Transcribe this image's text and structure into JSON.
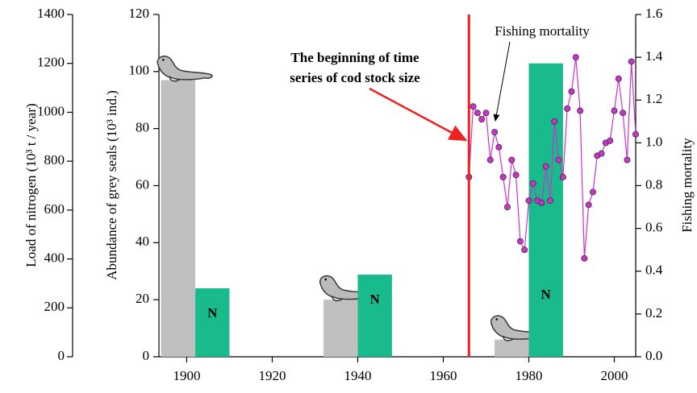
{
  "chart_data": {
    "type": "combo",
    "ylabel": "Load of nitrogen (10³ t / year)",
    "y2label": "Abundance of grey seals (10³ ind.)",
    "y3label": "Fishing mortality",
    "xlim": [
      1893.5,
      2005
    ],
    "xticks": [
      1900,
      1920,
      1940,
      1960,
      1980,
      2000
    ],
    "ylim": [
      0,
      1400
    ],
    "yticks": [
      0,
      200,
      400,
      600,
      800,
      1000,
      1200,
      1400
    ],
    "y2lim": [
      0,
      120
    ],
    "y2ticks": [
      0,
      20,
      40,
      60,
      80,
      100,
      120
    ],
    "y3lim": [
      0,
      1.6
    ],
    "y3ticks": [
      {
        "value": 0,
        "label": "0.0"
      },
      0.2,
      0.4,
      0.6,
      0.8,
      {
        "value": 1,
        "label": "1.0"
      },
      1.2,
      1.4,
      1.6
    ],
    "series": [
      {
        "type": "bar",
        "axis": "y2",
        "color": "#c0c0c0",
        "x_start": [
          1894,
          1932,
          1972
        ],
        "x_end": [
          1902,
          1940,
          1980
        ],
        "values": [
          97,
          20,
          6
        ]
      },
      {
        "type": "bar",
        "axis": "y",
        "color": "#19ba8c",
        "label": "N",
        "x_start": [
          1902,
          1940,
          1980
        ],
        "x_end": [
          1910,
          1948,
          1988
        ],
        "values": [
          280,
          336,
          1200
        ]
      },
      {
        "type": "line",
        "axis": "y3",
        "color": "#cc33cc",
        "x": [
          1966,
          1967,
          1968,
          1969,
          1970,
          1971,
          1972,
          1973,
          1974,
          1975,
          1976,
          1977,
          1978,
          1979,
          1980,
          1981,
          1982,
          1983,
          1984,
          1985,
          1986,
          1987,
          1988,
          1989,
          1990,
          1991,
          1992,
          1993,
          1994,
          1995,
          1996,
          1997,
          1998,
          1999,
          2000,
          2001,
          2002,
          2003,
          2004,
          2005
        ],
        "values": [
          0.84,
          1.17,
          1.14,
          1.11,
          1.14,
          0.92,
          1.05,
          0.98,
          0.84,
          0.7,
          0.92,
          0.85,
          0.54,
          0.5,
          0.73,
          0.81,
          0.73,
          0.72,
          0.89,
          0.73,
          1.1,
          0.92,
          0.84,
          1.16,
          1.24,
          1.4,
          1.15,
          0.46,
          0.71,
          0.77,
          0.94,
          0.95,
          1.0,
          1.01,
          1.15,
          1.3,
          1.14,
          0.92,
          1.38,
          1.04
        ]
      }
    ],
    "vline": {
      "x": 1966,
      "color": "#ee2222"
    },
    "annotations": [
      {
        "lines": [
          "Fishing mortality"
        ],
        "color": "#000000"
      },
      {
        "lines": [
          "The beginning of time",
          "series of cod stock size"
        ],
        "color": "#ee3333"
      }
    ]
  }
}
